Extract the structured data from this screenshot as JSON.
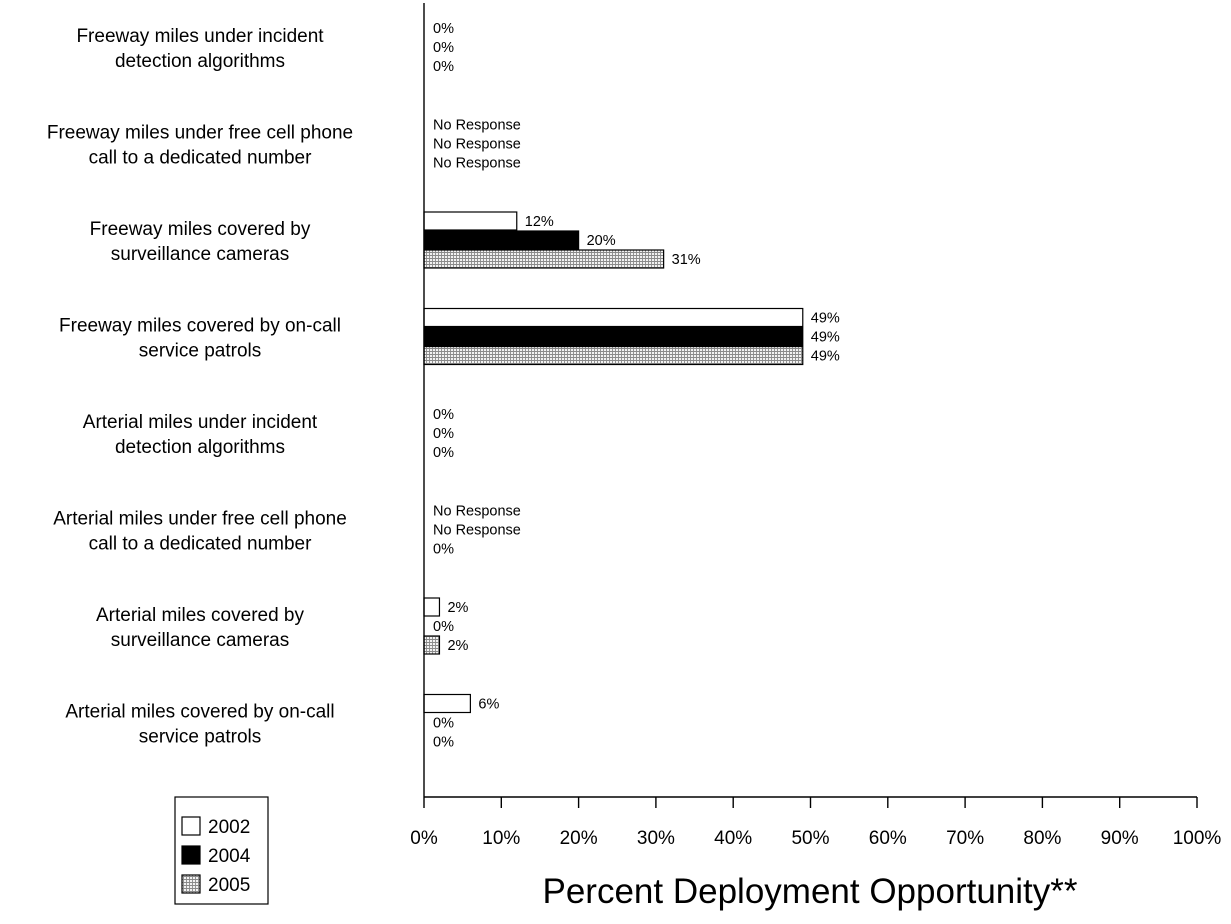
{
  "chart_data": {
    "type": "bar",
    "orientation": "horizontal",
    "categories": [
      [
        "Freeway miles under incident",
        "detection algorithms"
      ],
      [
        "Freeway miles under free cell phone",
        "call to a dedicated number"
      ],
      [
        "Freeway miles covered by",
        "surveillance cameras"
      ],
      [
        "Freeway miles covered by on-call",
        "service patrols"
      ],
      [
        "Arterial miles under incident",
        "detection algorithms"
      ],
      [
        "Arterial miles under free cell phone",
        "call to a dedicated number"
      ],
      [
        "Arterial miles covered by",
        "surveillance cameras"
      ],
      [
        "Arterial miles covered by on-call",
        "service patrols"
      ]
    ],
    "series": [
      {
        "name": "2002",
        "color": "#ffffff",
        "pattern": "none",
        "values": [
          0,
          null,
          12,
          49,
          0,
          null,
          2,
          6
        ],
        "labels": [
          "0%",
          "No Response",
          "12%",
          "49%",
          "0%",
          "No Response",
          "2%",
          "6%"
        ]
      },
      {
        "name": "2004",
        "color": "#000000",
        "pattern": "none",
        "values": [
          0,
          null,
          20,
          49,
          0,
          null,
          0,
          0
        ],
        "labels": [
          "0%",
          "No Response",
          "20%",
          "49%",
          "0%",
          "No Response",
          "0%",
          "0%"
        ]
      },
      {
        "name": "2005",
        "color": "#dddddd",
        "pattern": "fine-grid",
        "values": [
          0,
          null,
          31,
          49,
          0,
          0,
          2,
          0
        ],
        "labels": [
          "0%",
          "No Response",
          "31%",
          "49%",
          "0%",
          "0%",
          "2%",
          "0%"
        ]
      }
    ],
    "xlim": [
      0,
      100
    ],
    "xticks": [
      "0%",
      "10%",
      "20%",
      "30%",
      "40%",
      "50%",
      "60%",
      "70%",
      "80%",
      "90%",
      "100%"
    ],
    "xlabel": "Percent Deployment Opportunity**",
    "legend": {
      "placement": "bottom-left",
      "items": [
        "2002",
        "2004",
        "2005"
      ]
    },
    "grid": false
  }
}
